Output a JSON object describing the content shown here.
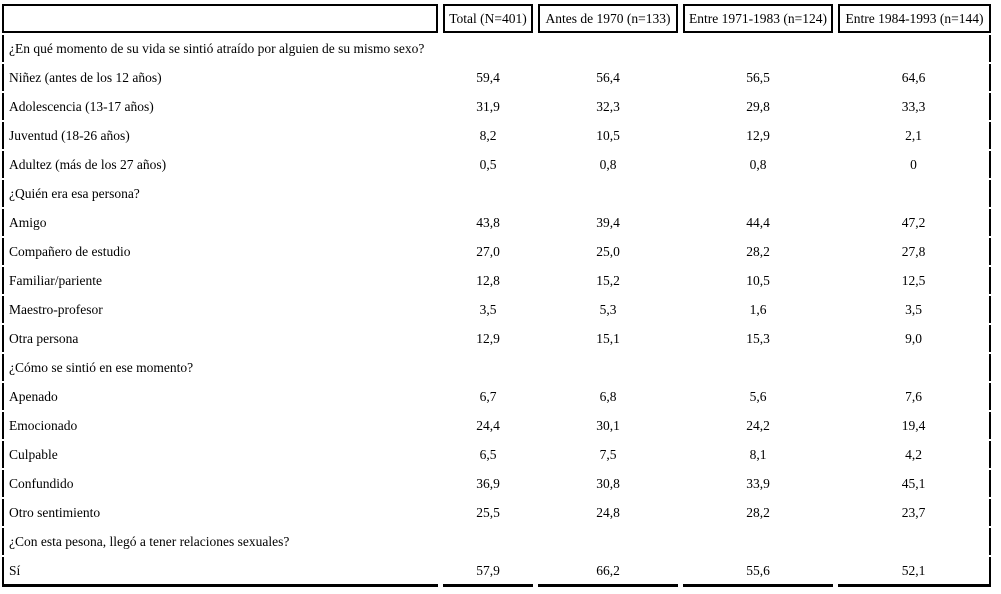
{
  "page": {
    "background_color": "#ffffff",
    "text_color": "#000000",
    "border_color": "#000000"
  },
  "table": {
    "header": {
      "corner": "",
      "columns": [
        "Total (N=401)",
        "Antes de 1970 (n=133)",
        "Entre 1971-1983 (n=124)",
        "Entre 1984-1993 (n=144)"
      ]
    },
    "sections": [
      {
        "question": "¿En qué momento de su vida se sintió atraído por alguien de su mismo sexo?",
        "rows": [
          {
            "label": "Niñez (antes de los 12 años)",
            "values": [
              "59,4",
              "56,4",
              "56,5",
              "64,6"
            ]
          },
          {
            "label": "Adolescencia (13-17 años)",
            "values": [
              "31,9",
              "32,3",
              "29,8",
              "33,3"
            ]
          },
          {
            "label": "Juventud (18-26 años)",
            "values": [
              "8,2",
              "10,5",
              "12,9",
              "2,1"
            ]
          },
          {
            "label": "Adultez (más de los 27 años)",
            "values": [
              "0,5",
              "0,8",
              "0,8",
              "0"
            ]
          }
        ]
      },
      {
        "question": "¿Quién era esa persona?",
        "rows": [
          {
            "label": "Amigo",
            "values": [
              "43,8",
              "39,4",
              "44,4",
              "47,2"
            ]
          },
          {
            "label": "Compañero de estudio",
            "values": [
              "27,0",
              "25,0",
              "28,2",
              "27,8"
            ]
          },
          {
            "label": "Familiar/pariente",
            "values": [
              "12,8",
              "15,2",
              "10,5",
              "12,5"
            ]
          },
          {
            "label": "Maestro-profesor",
            "values": [
              "3,5",
              "5,3",
              "1,6",
              "3,5"
            ]
          },
          {
            "label": "Otra persona",
            "values": [
              "12,9",
              "15,1",
              "15,3",
              "9,0"
            ]
          }
        ]
      },
      {
        "question": "¿Cómo se sintió en ese momento?",
        "rows": [
          {
            "label": "Apenado",
            "values": [
              "6,7",
              "6,8",
              "5,6",
              "7,6"
            ]
          },
          {
            "label": "Emocionado",
            "values": [
              "24,4",
              "30,1",
              "24,2",
              "19,4"
            ]
          },
          {
            "label": "Culpable",
            "values": [
              "6,5",
              "7,5",
              "8,1",
              "4,2"
            ]
          },
          {
            "label": "Confundido",
            "values": [
              "36,9",
              "30,8",
              "33,9",
              "45,1"
            ]
          },
          {
            "label": "Otro sentimiento",
            "values": [
              "25,5",
              "24,8",
              "28,2",
              "23,7"
            ]
          }
        ]
      },
      {
        "question": "¿Con esta pesona, llegó a tener relaciones sexuales?",
        "rows": [
          {
            "label": "Sí",
            "values": [
              "57,9",
              "66,2",
              "55,6",
              "52,1"
            ]
          }
        ]
      }
    ]
  }
}
